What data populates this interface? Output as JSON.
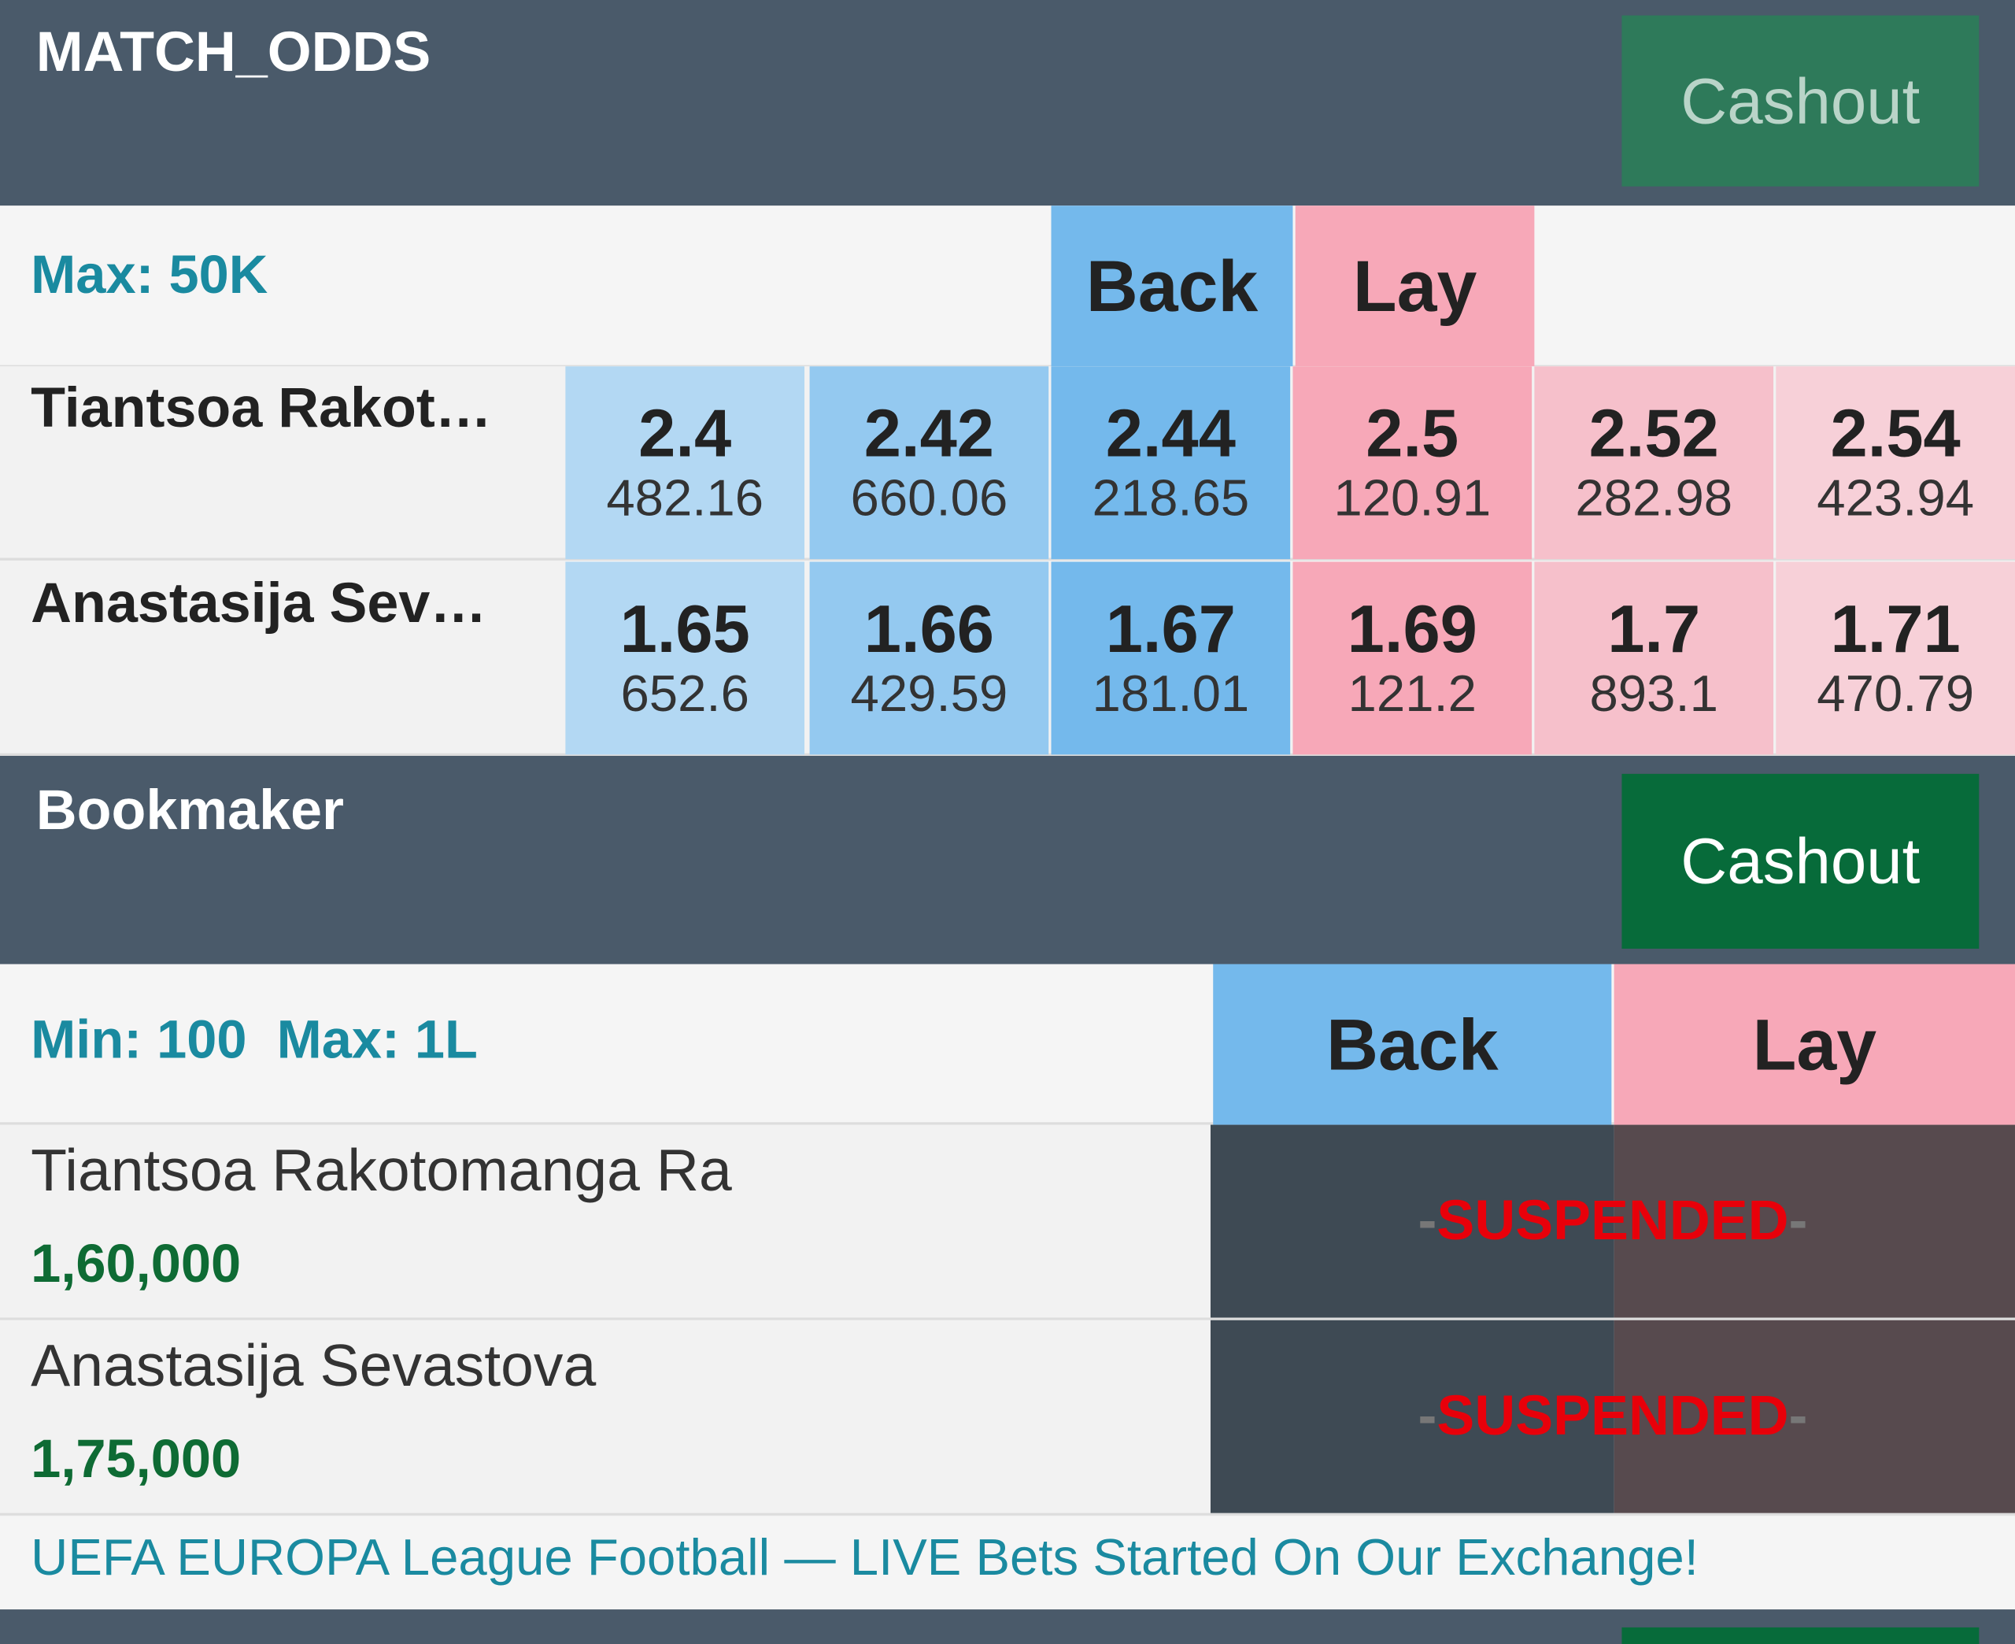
{
  "markets": [
    {
      "title": "MATCH_ODDS",
      "cashout": "Cashout",
      "limits": "Max: 50K",
      "back": "Back",
      "lay": "Lay",
      "runners": [
        {
          "name": "Tiantsoa Rakot…",
          "odds": [
            {
              "price": "2.4",
              "size": "482.16"
            },
            {
              "price": "2.42",
              "size": "660.06"
            },
            {
              "price": "2.44",
              "size": "218.65"
            },
            {
              "price": "2.5",
              "size": "120.91"
            },
            {
              "price": "2.52",
              "size": "282.98"
            },
            {
              "price": "2.54",
              "size": "423.94"
            }
          ]
        },
        {
          "name": "Anastasija Sev…",
          "odds": [
            {
              "price": "1.65",
              "size": "652.6"
            },
            {
              "price": "1.66",
              "size": "429.59"
            },
            {
              "price": "1.67",
              "size": "181.01"
            },
            {
              "price": "1.69",
              "size": "121.2"
            },
            {
              "price": "1.7",
              "size": "893.1"
            },
            {
              "price": "1.71",
              "size": "470.79"
            }
          ]
        }
      ]
    },
    {
      "title": "Bookmaker",
      "cashout": "Cashout",
      "limits": "Min: 100  Max: 1L",
      "back": "Back",
      "lay": "Lay",
      "runners": [
        {
          "name": "Tiantsoa Rakotomanga Ra",
          "amount": "1,60,000",
          "status": "SUSPENDED"
        },
        {
          "name": "Anastasija Sevastova",
          "amount": "1,75,000",
          "status": "SUSPENDED"
        }
      ]
    }
  ],
  "footer": "UEFA EUROPA League Football — LIVE Bets Started On Our Exchange!"
}
